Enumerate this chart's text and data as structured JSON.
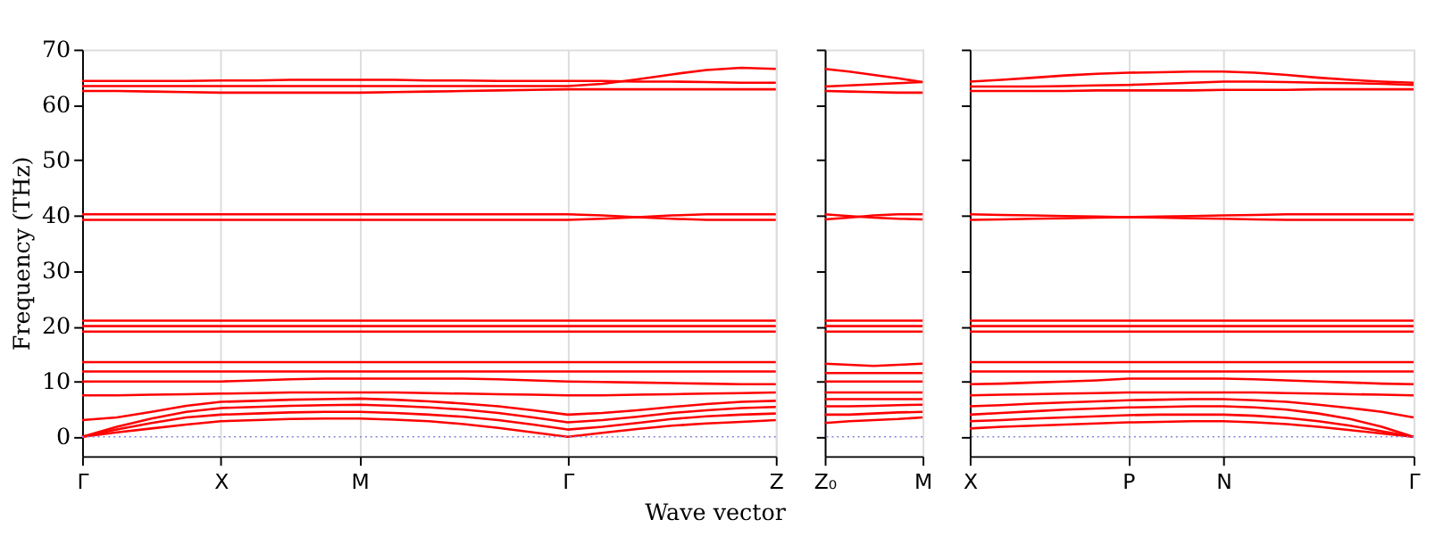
{
  "chart_data": [
    {
      "type": "line",
      "xlabel": "Wave vector",
      "ylabel": "Frequency (THz)",
      "categories": [
        "Γ",
        null,
        null,
        null,
        "X",
        null,
        null,
        null,
        "M",
        null,
        null,
        null,
        null,
        null,
        "Γ",
        null,
        null,
        null,
        null,
        null,
        "Z"
      ],
      "ylim": [
        -3.5,
        70
      ],
      "yticks": [
        0,
        10,
        20,
        30,
        40,
        50,
        60,
        70
      ],
      "grid": "x",
      "legend": false,
      "ref_lines": [
        {
          "axis": "y",
          "value": 0,
          "color": "#8080e0",
          "line_style": "dotted"
        }
      ],
      "series": [
        {
          "color": "#ff0000",
          "values": [
            0,
            0.8,
            1.5,
            2.2,
            2.8,
            3,
            3.2,
            3.3,
            3.3,
            3.1,
            2.8,
            2.3,
            1.6,
            0.8,
            0,
            0.7,
            1.4,
            2,
            2.4,
            2.7,
            3
          ]
        },
        {
          "color": "#ff0000",
          "values": [
            0,
            1.3,
            2.5,
            3.5,
            4,
            4.2,
            4.4,
            4.5,
            4.5,
            4.3,
            4,
            3.6,
            3,
            2.2,
            1.3,
            1.8,
            2.5,
            3.2,
            3.7,
            4,
            4.2
          ]
        },
        {
          "color": "#ff0000",
          "values": [
            0,
            1.8,
            3.3,
            4.5,
            5.2,
            5.4,
            5.6,
            5.7,
            5.8,
            5.6,
            5.3,
            4.9,
            4.3,
            3.5,
            2.6,
            3,
            3.6,
            4.3,
            4.8,
            5.2,
            5.4
          ]
        },
        {
          "color": "#ff0000",
          "values": [
            3,
            3.5,
            4.5,
            5.6,
            6.3,
            6.5,
            6.7,
            6.8,
            6.9,
            6.7,
            6.4,
            6,
            5.5,
            4.8,
            4,
            4.3,
            4.8,
            5.4,
            5.9,
            6.3,
            6.5
          ]
        },
        {
          "color": "#ff0000",
          "values": [
            7.5,
            7.5,
            7.6,
            7.7,
            7.8,
            7.9,
            8,
            8,
            8,
            8,
            7.9,
            7.8,
            7.7,
            7.6,
            7.5,
            7.5,
            7.6,
            7.7,
            7.8,
            7.9,
            8
          ]
        },
        {
          "color": "#ff0000",
          "values": [
            10,
            10,
            10,
            10,
            10,
            10.2,
            10.4,
            10.5,
            10.5,
            10.5,
            10.5,
            10.5,
            10.4,
            10.2,
            10,
            9.9,
            9.8,
            9.7,
            9.6,
            9.5,
            9.5
          ]
        },
        {
          "color": "#ff0000",
          "values": [
            11.8,
            11.8,
            11.8,
            11.8,
            11.8,
            11.8,
            11.8,
            11.8,
            11.8,
            11.8,
            11.8,
            11.8,
            11.8,
            11.8,
            11.8,
            11.8,
            11.8,
            11.8,
            11.8,
            11.8,
            11.8
          ]
        },
        {
          "color": "#ff0000",
          "values": [
            13.5,
            13.5,
            13.5,
            13.5,
            13.5,
            13.5,
            13.5,
            13.5,
            13.5,
            13.5,
            13.5,
            13.5,
            13.5,
            13.5,
            13.5,
            13.5,
            13.5,
            13.5,
            13.5,
            13.5,
            13.5
          ]
        },
        {
          "color": "#ff0000",
          "values": [
            19,
            19,
            19,
            19,
            19,
            19,
            19,
            19,
            19,
            19,
            19,
            19,
            19,
            19,
            19,
            19,
            19,
            19,
            19,
            19,
            19
          ]
        },
        {
          "color": "#ff0000",
          "values": [
            20,
            20,
            20,
            20,
            20,
            20,
            20,
            20,
            20,
            20,
            20,
            20,
            20,
            20,
            20,
            20,
            20,
            20,
            20,
            20,
            20
          ]
        },
        {
          "color": "#ff0000",
          "values": [
            21,
            21,
            21,
            21,
            21,
            21,
            21,
            21,
            21,
            21,
            21,
            21,
            21,
            21,
            21,
            21,
            21,
            21,
            21,
            21,
            21
          ]
        },
        {
          "color": "#ff0000",
          "values": [
            39.2,
            39.2,
            39.2,
            39.2,
            39.2,
            39.2,
            39.2,
            39.2,
            39.2,
            39.2,
            39.2,
            39.2,
            39.2,
            39.2,
            39.2,
            39.4,
            39.7,
            40,
            40.2,
            40.2,
            40.2
          ]
        },
        {
          "color": "#ff0000",
          "values": [
            40.2,
            40.2,
            40.2,
            40.2,
            40.2,
            40.2,
            40.2,
            40.2,
            40.2,
            40.2,
            40.2,
            40.2,
            40.2,
            40.2,
            40.2,
            40,
            39.7,
            39.4,
            39.2,
            39.2,
            39.2
          ]
        },
        {
          "color": "#ff0000",
          "values": [
            62.5,
            62.5,
            62.4,
            62.3,
            62.2,
            62.2,
            62.2,
            62.2,
            62.2,
            62.3,
            62.4,
            62.5,
            62.6,
            62.7,
            62.8,
            62.8,
            62.8,
            62.8,
            62.8,
            62.8,
            62.8
          ]
        },
        {
          "color": "#ff0000",
          "values": [
            64.3,
            64.3,
            64.3,
            64.3,
            64.4,
            64.4,
            64.5,
            64.5,
            64.5,
            64.5,
            64.4,
            64.4,
            64.3,
            64.3,
            64.3,
            64.3,
            64.2,
            64.2,
            64.1,
            64,
            64
          ]
        },
        {
          "color": "#ff0000",
          "values": [
            63.4,
            63.4,
            63.4,
            63.4,
            63.4,
            63.4,
            63.4,
            63.4,
            63.4,
            63.4,
            63.4,
            63.4,
            63.4,
            63.4,
            63.4,
            63.8,
            64.6,
            65.5,
            66.3,
            66.7,
            66.5
          ]
        }
      ]
    },
    {
      "type": "line",
      "categories": [
        "Z₀",
        null,
        null,
        null,
        "M"
      ],
      "ylim": [
        -3.5,
        70
      ],
      "tick_labels": "x",
      "yticks": [
        0,
        10,
        20,
        30,
        40,
        50,
        60,
        70
      ],
      "legend": false,
      "ref_lines": [
        {
          "axis": "y",
          "value": 0,
          "color": "#8080e0",
          "line_style": "dotted"
        }
      ],
      "series": [
        {
          "color": "#ff0000",
          "values": [
            2.5,
            2.8,
            3,
            3.2,
            3.5
          ]
        },
        {
          "color": "#ff0000",
          "values": [
            4,
            4,
            4.2,
            4.4,
            4.5
          ]
        },
        {
          "color": "#ff0000",
          "values": [
            5.5,
            5.5,
            5.6,
            5.7,
            5.8
          ]
        },
        {
          "color": "#ff0000",
          "values": [
            6.8,
            6.8,
            6.8,
            6.8,
            6.8
          ]
        },
        {
          "color": "#ff0000",
          "values": [
            8,
            8,
            8,
            8,
            8
          ]
        },
        {
          "color": "#ff0000",
          "values": [
            10,
            10,
            10,
            10,
            10
          ]
        },
        {
          "color": "#ff0000",
          "values": [
            11.5,
            11.5,
            11.5,
            11.5,
            11.5
          ]
        },
        {
          "color": "#ff0000",
          "values": [
            13.2,
            13,
            12.8,
            13,
            13.2
          ]
        },
        {
          "color": "#ff0000",
          "values": [
            19,
            19,
            19,
            19,
            19
          ]
        },
        {
          "color": "#ff0000",
          "values": [
            20,
            20,
            20,
            20,
            20
          ]
        },
        {
          "color": "#ff0000",
          "values": [
            21,
            21,
            21,
            21,
            21
          ]
        },
        {
          "color": "#ff0000",
          "values": [
            39.3,
            39.6,
            40,
            40.2,
            40.2
          ]
        },
        {
          "color": "#ff0000",
          "values": [
            40.2,
            39.9,
            39.6,
            39.4,
            39.3
          ]
        },
        {
          "color": "#ff0000",
          "values": [
            62.5,
            62.4,
            62.3,
            62.2,
            62.2
          ]
        },
        {
          "color": "#ff0000",
          "values": [
            63.3,
            63.5,
            63.7,
            63.9,
            64.1
          ]
        },
        {
          "color": "#ff0000",
          "values": [
            66.5,
            66,
            65.4,
            64.8,
            64.1
          ]
        }
      ]
    },
    {
      "type": "line",
      "categories": [
        "X",
        null,
        null,
        null,
        null,
        "P",
        null,
        null,
        "N",
        null,
        null,
        null,
        null,
        null,
        "Γ"
      ],
      "ylim": [
        -3.5,
        70
      ],
      "tick_labels": "x",
      "yticks": [
        0,
        10,
        20,
        30,
        40,
        50,
        60,
        70
      ],
      "grid": "x",
      "legend": false,
      "ref_lines": [
        {
          "axis": "y",
          "value": 0,
          "color": "#8080e0",
          "line_style": "dotted"
        }
      ],
      "series": [
        {
          "color": "#ff0000",
          "values": [
            1.5,
            1.8,
            2,
            2.2,
            2.4,
            2.6,
            2.7,
            2.8,
            2.8,
            2.6,
            2.3,
            1.8,
            1.2,
            0.6,
            0
          ]
        },
        {
          "color": "#ff0000",
          "values": [
            2.8,
            3,
            3.3,
            3.5,
            3.7,
            3.9,
            4,
            4,
            4,
            3.8,
            3.4,
            2.8,
            2,
            1,
            0
          ]
        },
        {
          "color": "#ff0000",
          "values": [
            4,
            4.3,
            4.6,
            4.9,
            5.1,
            5.3,
            5.4,
            5.5,
            5.5,
            5.3,
            4.9,
            4.2,
            3.2,
            1.8,
            0
          ]
        },
        {
          "color": "#ff0000",
          "values": [
            5.5,
            5.7,
            6,
            6.2,
            6.4,
            6.6,
            6.7,
            6.8,
            6.8,
            6.6,
            6.3,
            5.8,
            5.2,
            4.5,
            3.5
          ]
        },
        {
          "color": "#ff0000",
          "values": [
            7.5,
            7.6,
            7.7,
            7.8,
            7.9,
            8,
            8,
            8,
            8,
            8,
            7.9,
            7.8,
            7.7,
            7.6,
            7.5
          ]
        },
        {
          "color": "#ff0000",
          "values": [
            9.5,
            9.6,
            9.8,
            10,
            10.2,
            10.5,
            10.5,
            10.5,
            10.5,
            10.4,
            10.2,
            10,
            9.8,
            9.6,
            9.5
          ]
        },
        {
          "color": "#ff0000",
          "values": [
            11.8,
            11.8,
            11.8,
            11.8,
            11.8,
            11.8,
            11.8,
            11.8,
            11.8,
            11.8,
            11.8,
            11.8,
            11.8,
            11.8,
            11.8
          ]
        },
        {
          "color": "#ff0000",
          "values": [
            13.5,
            13.5,
            13.5,
            13.5,
            13.5,
            13.5,
            13.5,
            13.5,
            13.5,
            13.5,
            13.5,
            13.5,
            13.5,
            13.5,
            13.5
          ]
        },
        {
          "color": "#ff0000",
          "values": [
            19,
            19,
            19,
            19,
            19,
            19,
            19,
            19,
            19,
            19,
            19,
            19,
            19,
            19,
            19
          ]
        },
        {
          "color": "#ff0000",
          "values": [
            20,
            20,
            20,
            20,
            20,
            20,
            20,
            20,
            20,
            20,
            20,
            20,
            20,
            20,
            20
          ]
        },
        {
          "color": "#ff0000",
          "values": [
            21,
            21,
            21,
            21,
            21,
            21,
            21,
            21,
            21,
            21,
            21,
            21,
            21,
            21,
            21
          ]
        },
        {
          "color": "#ff0000",
          "values": [
            39.2,
            39.3,
            39.4,
            39.5,
            39.6,
            39.7,
            39.8,
            39.9,
            40,
            40.1,
            40.2,
            40.2,
            40.2,
            40.2,
            40.2
          ]
        },
        {
          "color": "#ff0000",
          "values": [
            40.2,
            40.1,
            40,
            39.9,
            39.8,
            39.7,
            39.6,
            39.5,
            39.4,
            39.3,
            39.2,
            39.2,
            39.2,
            39.2,
            39.2
          ]
        },
        {
          "color": "#ff0000",
          "values": [
            62.5,
            62.5,
            62.5,
            62.5,
            62.6,
            62.6,
            62.6,
            62.6,
            62.7,
            62.7,
            62.7,
            62.8,
            62.8,
            62.8,
            62.8
          ]
        },
        {
          "color": "#ff0000",
          "values": [
            63.3,
            63.3,
            63.3,
            63.4,
            63.5,
            63.6,
            63.8,
            64,
            64.2,
            64.2,
            64.1,
            64,
            63.9,
            63.8,
            63.6
          ]
        },
        {
          "color": "#ff0000",
          "values": [
            64.2,
            64.5,
            64.9,
            65.3,
            65.6,
            65.8,
            65.9,
            66,
            66,
            65.8,
            65.4,
            64.9,
            64.5,
            64.2,
            64
          ]
        }
      ]
    }
  ]
}
